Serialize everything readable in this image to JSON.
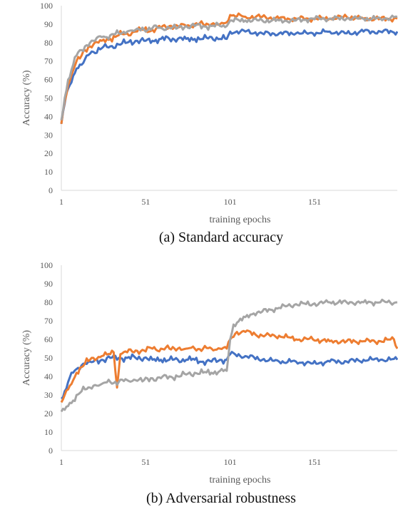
{
  "chart_data": [
    {
      "type": "line",
      "caption": "(a) Standard accuracy",
      "xlabel": "training epochs",
      "ylabel": "Accuracy (%)",
      "xlim": [
        1,
        200
      ],
      "ylim": [
        0,
        100
      ],
      "x_ticks": [
        1,
        51,
        101,
        151
      ],
      "y_ticks": [
        0,
        10,
        20,
        30,
        40,
        50,
        60,
        70,
        80,
        90,
        100
      ],
      "grid": false,
      "legend": "none",
      "series": [
        {
          "color": "#4472C4",
          "points": [
            [
              1,
              36
            ],
            [
              3,
              47
            ],
            [
              5,
              55
            ],
            [
              8,
              62
            ],
            [
              10,
              66
            ],
            [
              13,
              68
            ],
            [
              15,
              71
            ],
            [
              18,
              74
            ],
            [
              20,
              75
            ],
            [
              25,
              77
            ],
            [
              30,
              78
            ],
            [
              35,
              79
            ],
            [
              40,
              80
            ],
            [
              45,
              81
            ],
            [
              50,
              81
            ],
            [
              55,
              81
            ],
            [
              60,
              82
            ],
            [
              65,
              82
            ],
            [
              70,
              82
            ],
            [
              75,
              82
            ],
            [
              80,
              82
            ],
            [
              85,
              82
            ],
            [
              90,
              83
            ],
            [
              95,
              82
            ],
            [
              99,
              82
            ],
            [
              101,
              86
            ],
            [
              110,
              86
            ],
            [
              120,
              85
            ],
            [
              130,
              85
            ],
            [
              140,
              85
            ],
            [
              150,
              85
            ],
            [
              160,
              86
            ],
            [
              170,
              85
            ],
            [
              180,
              86
            ],
            [
              190,
              86
            ],
            [
              200,
              86
            ]
          ]
        },
        {
          "color": "#ED7D31",
          "points": [
            [
              1,
              36
            ],
            [
              3,
              48
            ],
            [
              5,
              57
            ],
            [
              8,
              65
            ],
            [
              10,
              70
            ],
            [
              13,
              73
            ],
            [
              15,
              76
            ],
            [
              18,
              78
            ],
            [
              20,
              79
            ],
            [
              25,
              81
            ],
            [
              30,
              82
            ],
            [
              35,
              84
            ],
            [
              40,
              85
            ],
            [
              45,
              86
            ],
            [
              50,
              87
            ],
            [
              55,
              87
            ],
            [
              60,
              88
            ],
            [
              65,
              89
            ],
            [
              70,
              89
            ],
            [
              75,
              89
            ],
            [
              80,
              90
            ],
            [
              85,
              90
            ],
            [
              90,
              90
            ],
            [
              95,
              90
            ],
            [
              99,
              91
            ],
            [
              101,
              95
            ],
            [
              110,
              94
            ],
            [
              120,
              94
            ],
            [
              130,
              93
            ],
            [
              140,
              93
            ],
            [
              150,
              93
            ],
            [
              160,
              93
            ],
            [
              170,
              94
            ],
            [
              180,
              93
            ],
            [
              190,
              93
            ],
            [
              200,
              93
            ]
          ]
        },
        {
          "color": "#A5A5A5",
          "points": [
            [
              1,
              38
            ],
            [
              3,
              50
            ],
            [
              5,
              60
            ],
            [
              8,
              68
            ],
            [
              10,
              73
            ],
            [
              13,
              76
            ],
            [
              15,
              78
            ],
            [
              18,
              80
            ],
            [
              20,
              81
            ],
            [
              25,
              83
            ],
            [
              30,
              84
            ],
            [
              35,
              85
            ],
            [
              40,
              86
            ],
            [
              45,
              87
            ],
            [
              50,
              87
            ],
            [
              55,
              88
            ],
            [
              60,
              88
            ],
            [
              65,
              88
            ],
            [
              70,
              88
            ],
            [
              75,
              89
            ],
            [
              80,
              89
            ],
            [
              85,
              89
            ],
            [
              90,
              89
            ],
            [
              95,
              89
            ],
            [
              99,
              89
            ],
            [
              101,
              92
            ],
            [
              110,
              92
            ],
            [
              120,
              92
            ],
            [
              130,
              92
            ],
            [
              140,
              92
            ],
            [
              150,
              93
            ],
            [
              160,
              93
            ],
            [
              170,
              93
            ],
            [
              180,
              93
            ],
            [
              190,
              93
            ],
            [
              200,
              94
            ]
          ]
        }
      ]
    },
    {
      "type": "line",
      "caption": "(b) Adversarial robustness",
      "xlabel": "training epochs",
      "ylabel": "Accuracy (%)",
      "xlim": [
        1,
        200
      ],
      "ylim": [
        0,
        100
      ],
      "x_ticks": [
        1,
        51,
        101,
        151
      ],
      "y_ticks": [
        0,
        10,
        20,
        30,
        40,
        50,
        60,
        70,
        80,
        90,
        100
      ],
      "grid": false,
      "legend": "none",
      "series": [
        {
          "color": "#4472C4",
          "points": [
            [
              1,
              28
            ],
            [
              3,
              32
            ],
            [
              5,
              37
            ],
            [
              8,
              42
            ],
            [
              10,
              44
            ],
            [
              13,
              46
            ],
            [
              15,
              47
            ],
            [
              18,
              48
            ],
            [
              20,
              48
            ],
            [
              25,
              49
            ],
            [
              30,
              50
            ],
            [
              35,
              50
            ],
            [
              40,
              50
            ],
            [
              45,
              50
            ],
            [
              50,
              50
            ],
            [
              55,
              49
            ],
            [
              60,
              49
            ],
            [
              65,
              49
            ],
            [
              70,
              49
            ],
            [
              75,
              49
            ],
            [
              80,
              49
            ],
            [
              85,
              48
            ],
            [
              90,
              48
            ],
            [
              95,
              49
            ],
            [
              99,
              49
            ],
            [
              101,
              52
            ],
            [
              110,
              51
            ],
            [
              120,
              49
            ],
            [
              130,
              48
            ],
            [
              140,
              48
            ],
            [
              150,
              47
            ],
            [
              160,
              48
            ],
            [
              170,
              48
            ],
            [
              180,
              49
            ],
            [
              190,
              49
            ],
            [
              200,
              49
            ]
          ]
        },
        {
          "color": "#ED7D31",
          "points": [
            [
              1,
              26
            ],
            [
              3,
              30
            ],
            [
              5,
              33
            ],
            [
              8,
              38
            ],
            [
              10,
              42
            ],
            [
              13,
              45
            ],
            [
              15,
              47
            ],
            [
              18,
              49
            ],
            [
              20,
              50
            ],
            [
              25,
              51
            ],
            [
              30,
              52
            ],
            [
              32,
              53
            ],
            [
              34,
              34
            ],
            [
              36,
              52
            ],
            [
              40,
              53
            ],
            [
              45,
              54
            ],
            [
              50,
              54
            ],
            [
              55,
              55
            ],
            [
              60,
              55
            ],
            [
              65,
              55
            ],
            [
              70,
              55
            ],
            [
              75,
              55
            ],
            [
              80,
              55
            ],
            [
              85,
              55
            ],
            [
              90,
              55
            ],
            [
              95,
              55
            ],
            [
              99,
              55
            ],
            [
              101,
              60
            ],
            [
              105,
              64
            ],
            [
              110,
              64
            ],
            [
              120,
              62
            ],
            [
              130,
              62
            ],
            [
              140,
              60
            ],
            [
              150,
              60
            ],
            [
              160,
              59
            ],
            [
              170,
              59
            ],
            [
              180,
              59
            ],
            [
              190,
              59
            ],
            [
              198,
              60
            ],
            [
              200,
              55
            ]
          ]
        },
        {
          "color": "#A5A5A5",
          "points": [
            [
              1,
              21
            ],
            [
              3,
              22
            ],
            [
              5,
              24
            ],
            [
              8,
              27
            ],
            [
              10,
              30
            ],
            [
              13,
              32
            ],
            [
              15,
              33
            ],
            [
              18,
              34
            ],
            [
              20,
              35
            ],
            [
              25,
              36
            ],
            [
              30,
              37
            ],
            [
              35,
              37
            ],
            [
              40,
              38
            ],
            [
              45,
              38
            ],
            [
              50,
              38
            ],
            [
              55,
              39
            ],
            [
              60,
              39
            ],
            [
              65,
              40
            ],
            [
              70,
              40
            ],
            [
              75,
              41
            ],
            [
              80,
              42
            ],
            [
              85,
              42
            ],
            [
              90,
              42
            ],
            [
              95,
              43
            ],
            [
              99,
              43
            ],
            [
              101,
              60
            ],
            [
              103,
              68
            ],
            [
              105,
              69
            ],
            [
              110,
              72
            ],
            [
              115,
              74
            ],
            [
              120,
              75
            ],
            [
              130,
              77
            ],
            [
              140,
              79
            ],
            [
              150,
              79
            ],
            [
              160,
              80
            ],
            [
              170,
              80
            ],
            [
              180,
              80
            ],
            [
              190,
              80
            ],
            [
              200,
              80
            ]
          ]
        }
      ]
    }
  ]
}
